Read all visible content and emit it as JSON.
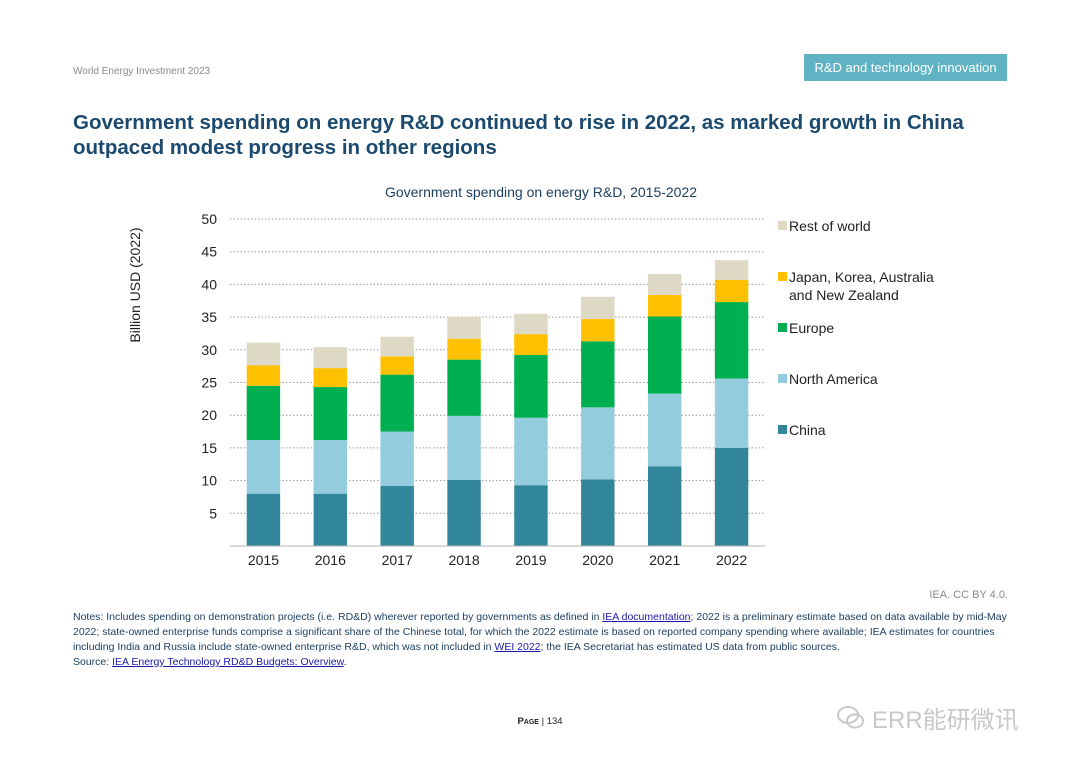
{
  "header": {
    "report_name": "World Energy Investment 2023",
    "section_tag": "R&D and technology innovation"
  },
  "page_title": "Government spending on energy R&D continued to rise in 2022, as marked growth in China outpaced modest progress in other regions",
  "chart_data": {
    "type": "bar",
    "stacked": true,
    "title": "Government spending on energy R&D, 2015-2022",
    "xlabel": "",
    "ylabel": "Billion USD (2022)",
    "ylim": [
      0,
      50
    ],
    "yticks": [
      5,
      10,
      15,
      20,
      25,
      30,
      35,
      40,
      45,
      50
    ],
    "grid": "horizontal-dotted",
    "legend_position": "right",
    "categories": [
      "2015",
      "2016",
      "2017",
      "2018",
      "2019",
      "2020",
      "2021",
      "2022"
    ],
    "series": [
      {
        "name": "China",
        "color": "#31869b",
        "values": [
          8.0,
          8.0,
          9.2,
          10.1,
          9.3,
          10.2,
          12.2,
          15.0
        ]
      },
      {
        "name": "North America",
        "color": "#93cddd",
        "values": [
          8.2,
          8.2,
          8.3,
          9.8,
          10.3,
          11.0,
          11.1,
          10.6
        ]
      },
      {
        "name": "Europe",
        "color": "#00b050",
        "values": [
          8.3,
          8.1,
          8.7,
          8.6,
          9.6,
          10.1,
          11.8,
          11.7
        ]
      },
      {
        "name": "Japan, Korea, Australia and New Zealand",
        "color": "#ffc000",
        "values": [
          3.1,
          2.9,
          2.8,
          3.2,
          3.2,
          3.4,
          3.3,
          3.4
        ]
      },
      {
        "name": "Rest of world",
        "color": "#ddd9c4",
        "values": [
          3.5,
          3.2,
          3.0,
          3.3,
          3.1,
          3.4,
          3.2,
          3.0
        ]
      }
    ]
  },
  "credit": "IEA. CC BY 4.0.",
  "notes": {
    "p1": "Notes: Includes spending on demonstration projects (i.e. RD&D) wherever reported by governments as defined in ",
    "link1": "IEA documentation",
    "p2": "; 2022 is a preliminary estimate based on data available by mid-May 2022; state-owned enterprise funds comprise a significant share of the Chinese total, for which the 2022 estimate is based on reported company spending where available; IEA estimates for countries including India and Russia include state-owned enterprise R&D, which was not included in ",
    "link2": "WEI 2022",
    "p3": "; the IEA Secretariat has estimated US data from public sources.",
    "source_prefix": "Source: ",
    "source_link": "IEA Energy Technology RD&D Budgets: Overview",
    "source_end": "."
  },
  "footer": {
    "page_word": "Page",
    "page_number": "| 134"
  },
  "watermark": {
    "text": "ERR能研微讯",
    "icon": "wechat-icon"
  }
}
